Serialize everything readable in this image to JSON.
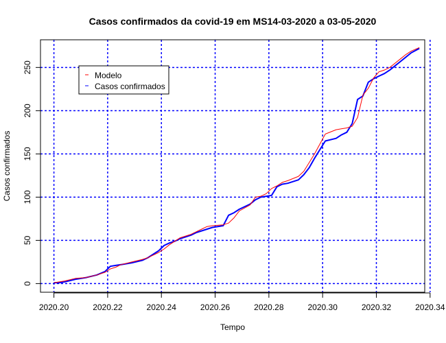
{
  "chart_data": {
    "type": "line",
    "title": "Casos confirmados da covid-19 em MS14-03-2020 a 03-05-2020",
    "xlabel": "Tempo",
    "ylabel": "Casos confirmados",
    "xlim": [
      2020.195,
      2020.338
    ],
    "ylim": [
      -10,
      282
    ],
    "x_ticks": [
      2020.2,
      2020.22,
      2020.24,
      2020.26,
      2020.28,
      2020.3,
      2020.32,
      2020.34
    ],
    "x_tick_labels": [
      "2020.20",
      "2020.22",
      "2020.24",
      "2020.26",
      "2020.28",
      "2020.30",
      "2020.32",
      "2020.34"
    ],
    "y_ticks": [
      0,
      50,
      100,
      150,
      200,
      250
    ],
    "y_tick_labels": [
      "0",
      "50",
      "100",
      "150",
      "200",
      "250"
    ],
    "grid": true,
    "grid_color": "#0000ff",
    "legend_position": "top-left",
    "legend": [
      {
        "label": "Modelo",
        "color": "#ff0000"
      },
      {
        "label": "Casos confirmados",
        "color": "#0000ff"
      }
    ],
    "series": [
      {
        "name": "Casos confirmados",
        "color": "#0000ff",
        "x": [
          2020.2,
          2020.202,
          2020.204,
          2020.208,
          2020.212,
          2020.216,
          2020.219,
          2020.221,
          2020.223,
          2020.225,
          2020.229,
          2020.233,
          2020.235,
          2020.237,
          2020.239,
          2020.241,
          2020.243,
          2020.245,
          2020.247,
          2020.251,
          2020.253,
          2020.255,
          2020.257,
          2020.259,
          2020.263,
          2020.265,
          2020.267,
          2020.269,
          2020.273,
          2020.275,
          2020.277,
          2020.279,
          2020.281,
          2020.283,
          2020.285,
          2020.287,
          2020.291,
          2020.293,
          2020.295,
          2020.297,
          2020.301,
          2020.305,
          2020.307,
          2020.309,
          2020.311,
          2020.313,
          2020.315,
          2020.317,
          2020.319,
          2020.321,
          2020.323,
          2020.325,
          2020.327,
          2020.329,
          2020.331,
          2020.333,
          2020.336
        ],
        "y": [
          1,
          1,
          2,
          5,
          7,
          10,
          14,
          20,
          21,
          22,
          24,
          27,
          30,
          34,
          38,
          44,
          47,
          49,
          52,
          56,
          59,
          61,
          63,
          65,
          67,
          79,
          82,
          86,
          92,
          97,
          100,
          101,
          102,
          112,
          115,
          116,
          120,
          126,
          134,
          145,
          165,
          168,
          172,
          175,
          185,
          213,
          217,
          233,
          237,
          240,
          243,
          247,
          252,
          257,
          262,
          267,
          272
        ]
      },
      {
        "name": "Modelo",
        "color": "#ff0000",
        "x": [
          2020.2,
          2020.202,
          2020.204,
          2020.208,
          2020.212,
          2020.216,
          2020.219,
          2020.221,
          2020.223,
          2020.225,
          2020.229,
          2020.233,
          2020.235,
          2020.237,
          2020.239,
          2020.241,
          2020.243,
          2020.245,
          2020.247,
          2020.251,
          2020.253,
          2020.255,
          2020.257,
          2020.259,
          2020.263,
          2020.265,
          2020.267,
          2020.269,
          2020.273,
          2020.275,
          2020.277,
          2020.279,
          2020.281,
          2020.283,
          2020.285,
          2020.287,
          2020.291,
          2020.293,
          2020.295,
          2020.297,
          2020.301,
          2020.305,
          2020.307,
          2020.309,
          2020.311,
          2020.313,
          2020.315,
          2020.317,
          2020.319,
          2020.321,
          2020.323,
          2020.325,
          2020.327,
          2020.329,
          2020.331,
          2020.333,
          2020.336
        ],
        "y": [
          1,
          2,
          3,
          6,
          7,
          10,
          13,
          17,
          19,
          22,
          25,
          28,
          30,
          33,
          36,
          40,
          45,
          49,
          53,
          57,
          60,
          63,
          66,
          67,
          68,
          70,
          76,
          84,
          91,
          100,
          101,
          104,
          110,
          113,
          117,
          119,
          124,
          130,
          140,
          150,
          173,
          178,
          179,
          180,
          182,
          192,
          218,
          226,
          238,
          245,
          247,
          250,
          255,
          260,
          265,
          269,
          273
        ]
      }
    ]
  }
}
